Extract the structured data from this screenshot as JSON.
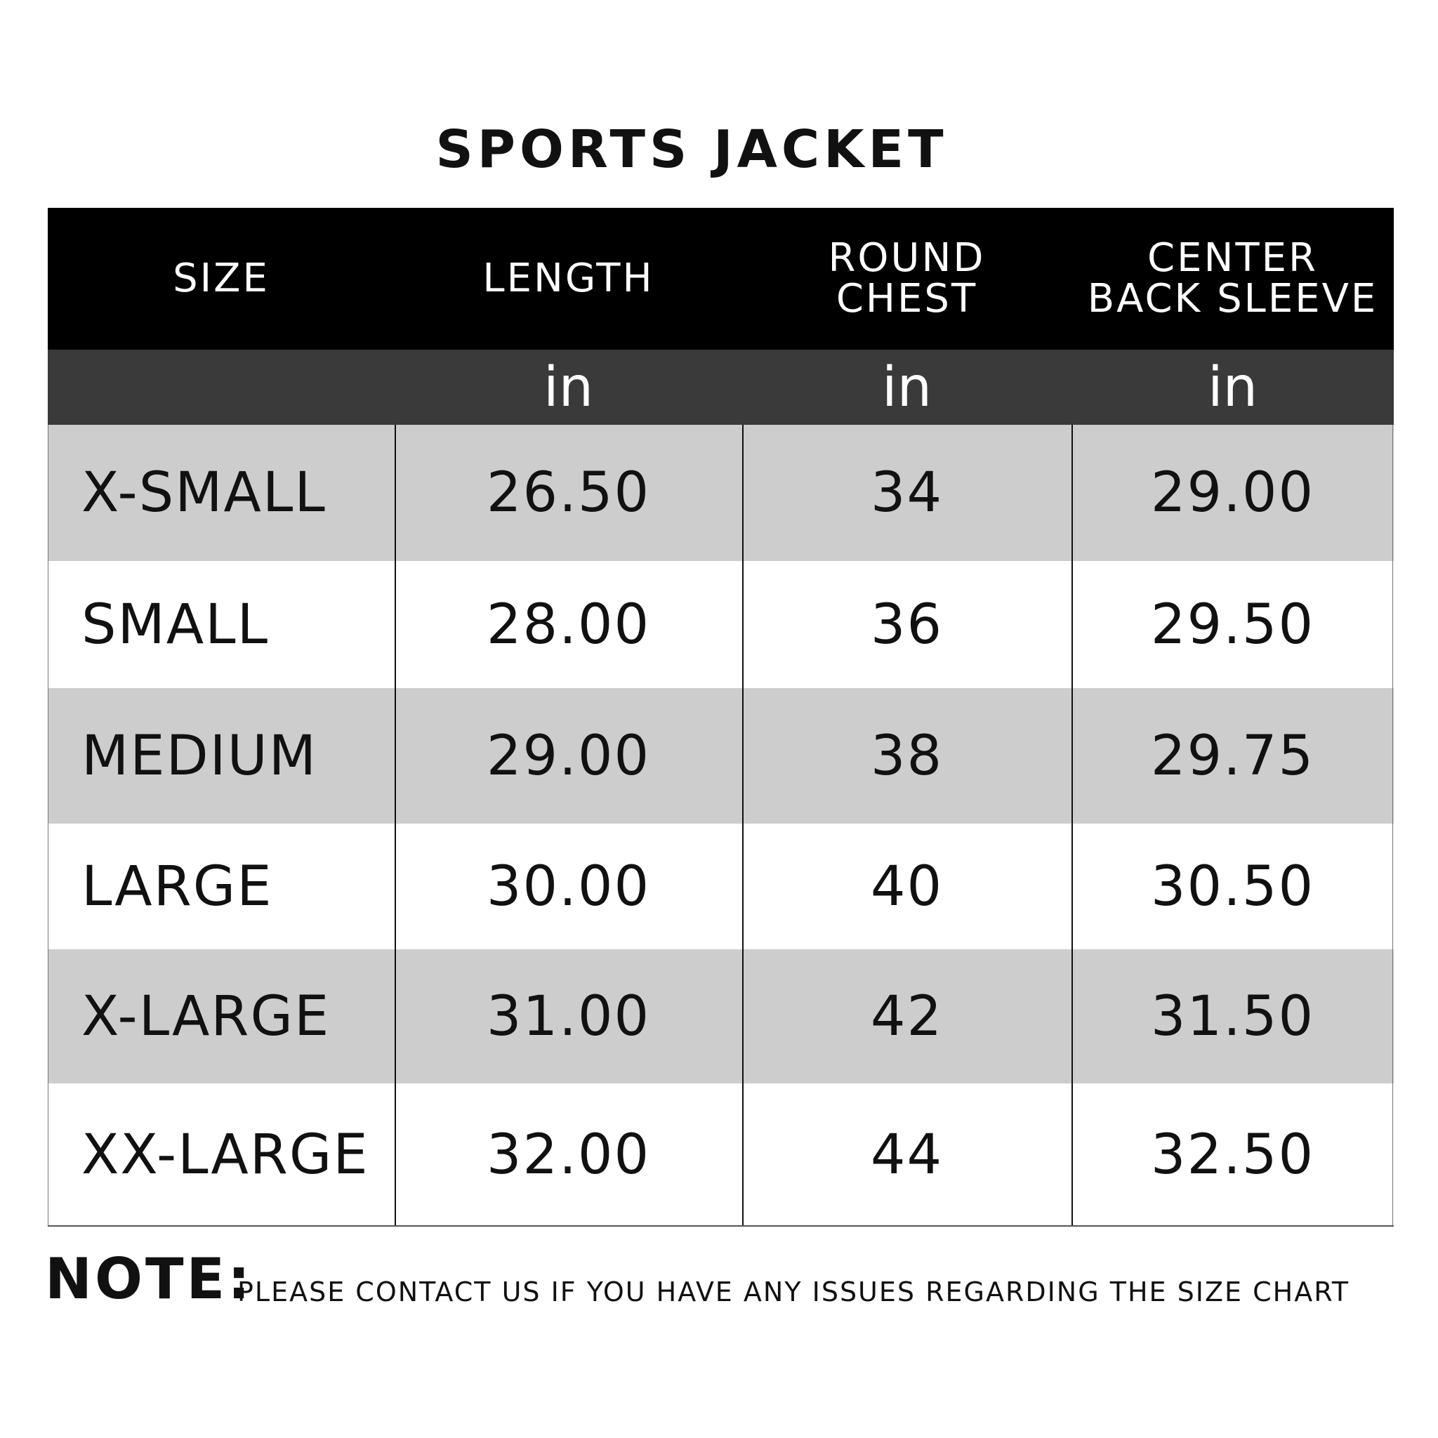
{
  "title": "SPORTS JACKET",
  "table": {
    "headers": [
      "SIZE",
      "LENGTH",
      "ROUND\nCHEST",
      "CENTER\nBACK SLEEVE"
    ],
    "units": [
      "in",
      "in",
      "in"
    ],
    "rows": [
      [
        "X-SMALL",
        "26.50",
        "34",
        "29.00"
      ],
      [
        "SMALL",
        "28.00",
        "36",
        "29.50"
      ],
      [
        "MEDIUM",
        "29.00",
        "38",
        "29.75"
      ],
      [
        "LARGE",
        "30.00",
        "40",
        "30.50"
      ],
      [
        "X-LARGE",
        "31.00",
        "42",
        "31.50"
      ],
      [
        "XX-LARGE",
        "32.00",
        "44",
        "32.50"
      ]
    ]
  },
  "note": {
    "label": "NOTE:",
    "text": "PLEASE CONTACT US IF YOU HAVE ANY ISSUES REGARDING THE SIZE CHART"
  }
}
